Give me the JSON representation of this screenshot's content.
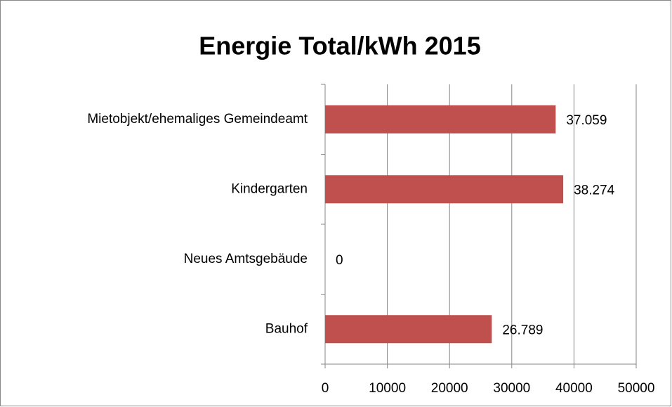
{
  "chart_data": {
    "type": "bar",
    "orientation": "horizontal",
    "title": "Energie Total/kWh 2015",
    "categories": [
      "Mietobjekt/ehemaliges Gemeindeamt",
      "Kindergarten",
      "Neues Amtsgebäude",
      "Bauhof"
    ],
    "values": [
      37059,
      38274,
      0,
      26789
    ],
    "value_labels": [
      "37.059",
      "38.274",
      "0",
      "26.789"
    ],
    "color": "#c0504d",
    "xlim": [
      0,
      50000
    ],
    "xticks": [
      0,
      10000,
      20000,
      30000,
      40000,
      50000
    ],
    "grid": true
  }
}
